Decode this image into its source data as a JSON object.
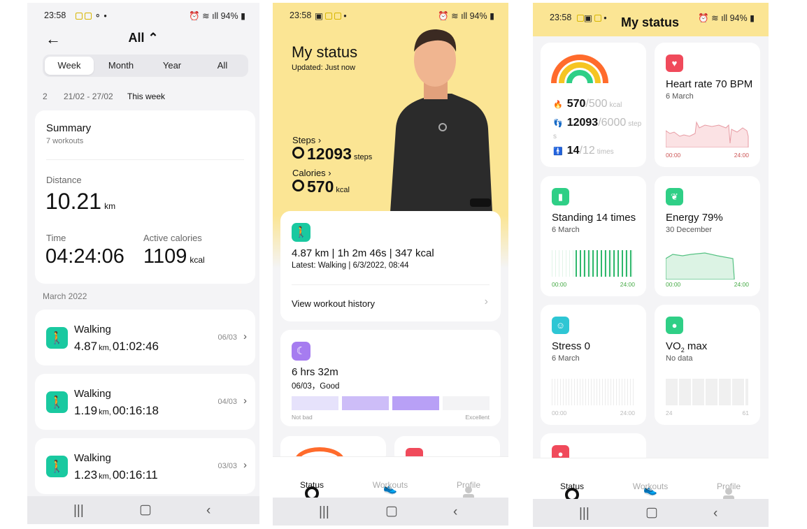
{
  "status_bar": {
    "time": "23:58",
    "battery": "94%"
  },
  "screen1": {
    "title": "All ⌃",
    "periods": [
      "Week",
      "Month",
      "Year",
      "All"
    ],
    "date_ranges": [
      "2",
      "21/02 - 27/02",
      "This week"
    ],
    "summary": {
      "title": "Summary",
      "subtitle": "7 workouts"
    },
    "distance": {
      "label": "Distance",
      "value": "10.21",
      "unit": "km"
    },
    "time": {
      "label": "Time",
      "value": "04:24:06"
    },
    "active_calories": {
      "label": "Active calories",
      "value": "1109",
      "unit": "kcal"
    },
    "month_header": "March 2022",
    "workouts": [
      {
        "name": "Walking",
        "km": "4.87",
        "km_unit": "km,",
        "duration": "01:02:46",
        "date": "06/03"
      },
      {
        "name": "Walking",
        "km": "1.19",
        "km_unit": "km,",
        "duration": "00:16:18",
        "date": "04/03"
      },
      {
        "name": "Walking",
        "km": "1.23",
        "km_unit": "km,",
        "duration": "00:16:11",
        "date": "03/03"
      }
    ]
  },
  "screen2": {
    "title": "My status",
    "updated": "Updated: Just now",
    "steps": {
      "label": "Steps ›",
      "value": "12093",
      "unit": "steps"
    },
    "calories": {
      "label": "Calories ›",
      "value": "570",
      "unit": "kcal"
    },
    "workout_card": {
      "summary": "4.87 km | 1h 2m 46s | 347 kcal",
      "latest": "Latest: Walking | 6/3/2022, 08:44",
      "link": "View workout history"
    },
    "sleep_card": {
      "duration": "6 hrs 32m",
      "date": "06/03，Good",
      "scale_low": "Not bad",
      "scale_high": "Excellent"
    },
    "tabs": [
      "Status",
      "Workouts",
      "Profile"
    ]
  },
  "screen3": {
    "header_title": "My status",
    "rings": {
      "kcal": "570",
      "kcal_goal": "/500",
      "kcal_unit": "kcal",
      "steps": "12093",
      "steps_goal": "/6000",
      "steps_unit": "step s",
      "times": "14",
      "times_goal": "/12",
      "times_unit": "times"
    },
    "heart": {
      "title": "Heart rate 70 BPM",
      "date": "6 March",
      "x0": "00:00",
      "x1": "24:00"
    },
    "standing": {
      "title": "Standing 14 times",
      "date": "6 March",
      "x0": "00:00",
      "x1": "24:00"
    },
    "energy": {
      "title": "Energy 79%",
      "date": "30 December",
      "x0": "00:00",
      "x1": "24:00"
    },
    "stress": {
      "title": "Stress 0",
      "date": "6 March",
      "x0": "00:00",
      "x1": "24:00"
    },
    "vo2": {
      "title": "VO",
      "sub": "2",
      "title_end": " max",
      "date": "No data",
      "x0": "24",
      "x1": "61"
    },
    "tabs": [
      "Status",
      "Workouts",
      "Profile"
    ]
  },
  "colors": {
    "accent_green": "#19c9a0",
    "hero_yellow": "#fbe594",
    "heart_red": "#f04a5b",
    "sleep_purple": "#a67cf0"
  }
}
